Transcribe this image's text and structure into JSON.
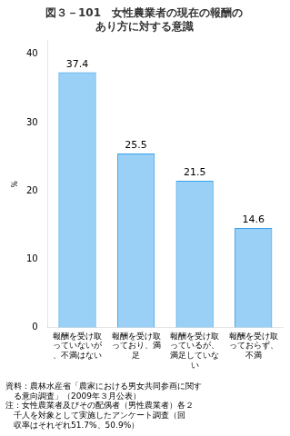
{
  "chart_data": {
    "type": "bar",
    "title": [
      "図３－101　女性農業者の現在の報酬の",
      "あり方に対する意識"
    ],
    "categories": [
      "報酬を受け取っていないが、不満はない",
      "報酬を受け取っており、満足",
      "報酬を受け取っているが、満足していない",
      "報酬を受け取っておらず、不満"
    ],
    "values": [
      37.4,
      25.5,
      21.5,
      14.6
    ],
    "ylabel": "％",
    "ylim": [
      0,
      42
    ],
    "yticks": [
      0,
      10,
      20,
      30,
      40
    ],
    "grid": false,
    "data_labels": true,
    "annotations": [
      "資料：農林水産省「農家における男女共同参画に関す",
      "　る意向調査」（2009年３月公表）",
      "注：女性農業者及びその配偶者（男性農業者）各２",
      "　千人を対象として実施したアンケート調査（回",
      "　収率はそれぞれ51.7%、50.9%）"
    ]
  }
}
